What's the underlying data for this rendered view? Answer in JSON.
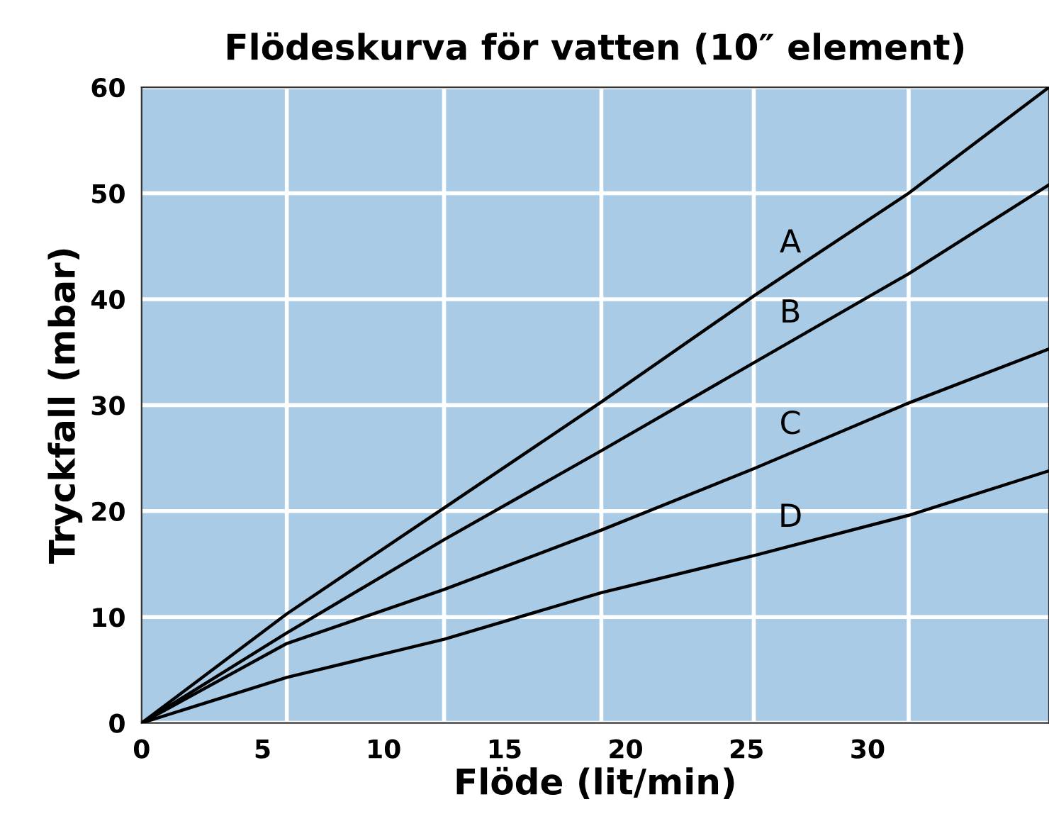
{
  "chart_data": {
    "type": "line",
    "title": "Flödeskurva för vatten (10″ element)",
    "xlabel": "Flöde (lit/min)",
    "ylabel": "Tryckfall (mbar)",
    "xlim": [
      0,
      37.5
    ],
    "ylim": [
      0,
      60
    ],
    "xticks": [
      0,
      5,
      10,
      15,
      20,
      25,
      30
    ],
    "yticks": [
      0,
      10,
      20,
      30,
      40,
      50,
      60
    ],
    "grid": "y",
    "legend": false,
    "marker": "none",
    "line_style": "solid",
    "ref_lines": [
      {
        "axis": "x",
        "value": 6,
        "color": "#ffffff"
      },
      {
        "axis": "x",
        "value": 12.5,
        "color": "#ffffff"
      },
      {
        "axis": "x",
        "value": 19,
        "color": "#ffffff"
      },
      {
        "axis": "x",
        "value": 25.3,
        "color": "#ffffff"
      },
      {
        "axis": "x",
        "value": 31.7,
        "color": "#ffffff"
      }
    ],
    "x": [
      0,
      6,
      12.5,
      19,
      25.3,
      31.7,
      37.5
    ],
    "series": [
      {
        "name": "A",
        "color": "#000000",
        "values": [
          0,
          10.3,
          20.3,
          30.3,
          40.3,
          50,
          60
        ]
      },
      {
        "name": "B",
        "color": "#000000",
        "values": [
          0,
          8.5,
          17.3,
          25.7,
          34,
          42.4,
          50.8
        ]
      },
      {
        "name": "C",
        "color": "#000000",
        "values": [
          0,
          7.5,
          12.6,
          18.2,
          24,
          30.2,
          35.3
        ]
      },
      {
        "name": "D",
        "color": "#000000",
        "values": [
          0,
          4.3,
          7.9,
          12.3,
          15.8,
          19.6,
          23.8
        ]
      }
    ]
  }
}
